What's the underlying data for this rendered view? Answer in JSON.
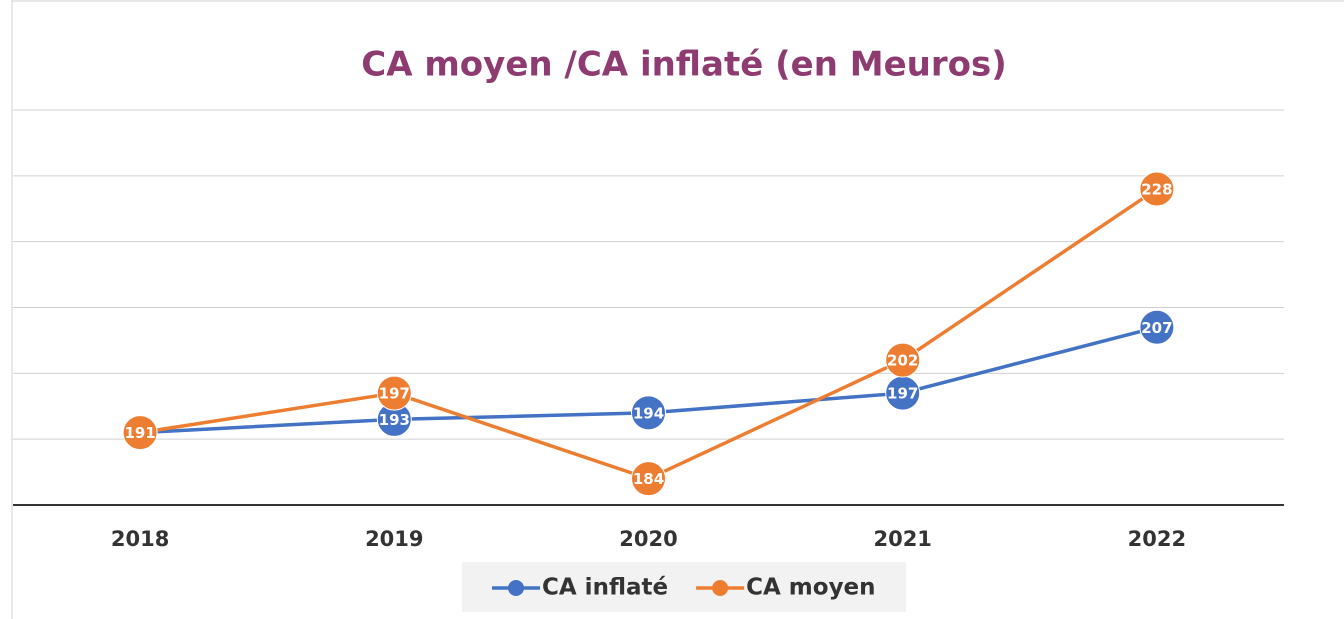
{
  "chart_data": {
    "type": "line",
    "title": "CA moyen /CA inflaté (en Meuros)",
    "categories": [
      "2018",
      "2019",
      "2020",
      "2021",
      "2022"
    ],
    "series": [
      {
        "name": "CA inflaté",
        "color": "#4472c4",
        "values": [
          191,
          193,
          194,
          197,
          207
        ]
      },
      {
        "name": "CA moyen",
        "color": "#ed7d31",
        "values": [
          191,
          197,
          184,
          202,
          228
        ]
      }
    ],
    "ylim": [
      180,
      240
    ],
    "yticks": [
      180,
      190,
      200,
      210,
      220,
      230,
      240
    ],
    "grid": true,
    "legend": "bottom"
  }
}
